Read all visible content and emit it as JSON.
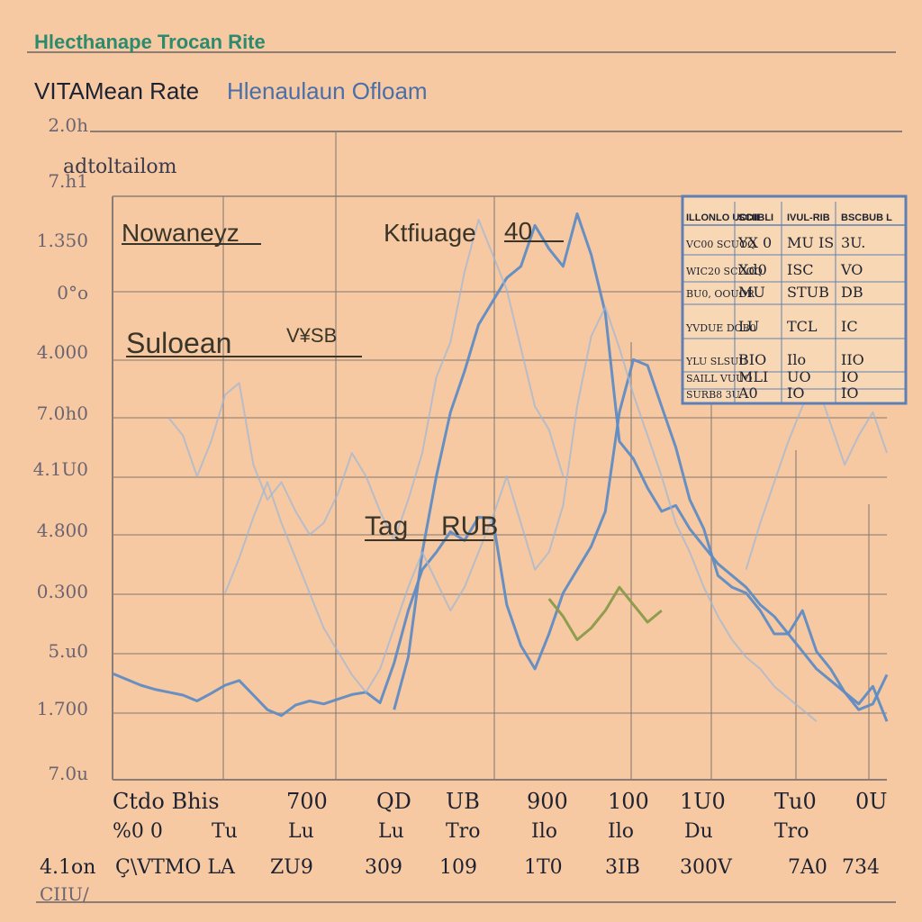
{
  "header": {
    "top_title": "Hlecthanape Trocan Rite",
    "main_title_bold": "VITAMean Rate",
    "main_title_light": "Hlenaulaun Ofloam"
  },
  "annotations": {
    "top_left": "adtoltailom",
    "upper_label": "Nowaneyz",
    "upper_right_label": "Ktfiuage",
    "upper_right_value": "40",
    "mid_label": "Suloean",
    "mid_label_suffix": "V¥SB",
    "center_label_a": "Tag",
    "center_label_b": "RUB"
  },
  "colors": {
    "background": "#f6c9a3",
    "grid": "#8a7d76",
    "line_primary": "#5f8cc4",
    "line_faint": "#9eb6d6",
    "line_olive": "#8a9a4a",
    "title_green": "#2e8a6c",
    "text_dark": "#1e2230",
    "text_axis": "#6c6470"
  },
  "chart_data": {
    "type": "line",
    "title": "VITAMean Rate Hlenaulaun Ofloam",
    "y_tick_labels": [
      "2.0h",
      "7.h1",
      "1.350",
      "0°o",
      "4.000",
      "7.0h0",
      "4.1U0",
      "4.800",
      "0.300",
      "5.u0",
      "1.700",
      "7.0u"
    ],
    "x_row1_labels": [
      "Ctdo Bhis",
      "700",
      "QD",
      "UB",
      "900",
      "100",
      "1U0",
      "Tu0",
      "0U"
    ],
    "x_row2_labels": [
      "%0 0",
      "Tu",
      "Lu",
      "Lu",
      "Tro",
      "Ilo",
      "Ilo",
      "Du",
      "Tro"
    ],
    "x_row3_labels": [
      "4.1on",
      "Ç\\VTMO LA",
      "ZU9",
      "309",
      "109",
      "1T0",
      "3IB",
      "300V",
      "7A0",
      "734"
    ],
    "x_footer_label": "CIIU/",
    "series": [
      {
        "color": "#5f8cc4",
        "points": [
          [
            0,
            1.82
          ],
          [
            2,
            1.72
          ],
          [
            4,
            1.62
          ],
          [
            6,
            1.55
          ],
          [
            8,
            1.5
          ],
          [
            10,
            1.45
          ],
          [
            12,
            1.35
          ],
          [
            14,
            1.48
          ],
          [
            16,
            1.62
          ],
          [
            18,
            1.7
          ],
          [
            20,
            1.45
          ],
          [
            22,
            1.2
          ],
          [
            24,
            1.1
          ],
          [
            26,
            1.28
          ],
          [
            28,
            1.35
          ],
          [
            30,
            1.3
          ],
          [
            32,
            1.38
          ],
          [
            34,
            1.46
          ],
          [
            36,
            1.5
          ],
          [
            38,
            1.32
          ],
          [
            40,
            2.0
          ],
          [
            42,
            2.9
          ],
          [
            44,
            3.6
          ],
          [
            46,
            3.9
          ],
          [
            48,
            4.25
          ],
          [
            50,
            4.1
          ],
          [
            52,
            4.5
          ],
          [
            54,
            4.48
          ],
          [
            56,
            3.0
          ],
          [
            58,
            2.3
          ],
          [
            60,
            1.9
          ],
          [
            62,
            2.5
          ],
          [
            64,
            3.2
          ],
          [
            66,
            3.6
          ],
          [
            68,
            4.0
          ],
          [
            70,
            4.6
          ],
          [
            72,
            6.3
          ],
          [
            74,
            7.2
          ],
          [
            76,
            7.1
          ],
          [
            78,
            6.4
          ],
          [
            80,
            5.7
          ],
          [
            82,
            4.8
          ],
          [
            84,
            4.3
          ],
          [
            86,
            3.5
          ],
          [
            88,
            3.3
          ],
          [
            90,
            3.2
          ],
          [
            92,
            2.9
          ],
          [
            94,
            2.5
          ],
          [
            96,
            2.5
          ],
          [
            98,
            2.9
          ],
          [
            100,
            2.2
          ],
          [
            102,
            1.9
          ],
          [
            104,
            1.5
          ],
          [
            106,
            1.2
          ],
          [
            108,
            1.3
          ],
          [
            110,
            1.8
          ]
        ]
      },
      {
        "color": "#5f8cc4",
        "points": [
          [
            40,
            1.2
          ],
          [
            42,
            2.1
          ],
          [
            44,
            3.9
          ],
          [
            46,
            5.2
          ],
          [
            48,
            6.3
          ],
          [
            50,
            7.0
          ],
          [
            52,
            7.8
          ],
          [
            54,
            8.2
          ],
          [
            56,
            8.6
          ],
          [
            58,
            8.8
          ],
          [
            60,
            9.5
          ],
          [
            62,
            9.1
          ],
          [
            64,
            8.8
          ],
          [
            66,
            9.7
          ],
          [
            68,
            9.0
          ],
          [
            70,
            8.0
          ],
          [
            72,
            5.8
          ],
          [
            74,
            5.5
          ],
          [
            76,
            5.0
          ],
          [
            78,
            4.6
          ],
          [
            80,
            4.7
          ],
          [
            82,
            4.3
          ],
          [
            84,
            4.0
          ],
          [
            86,
            3.7
          ],
          [
            88,
            3.5
          ],
          [
            90,
            3.3
          ],
          [
            92,
            3.0
          ],
          [
            94,
            2.8
          ],
          [
            96,
            2.5
          ],
          [
            98,
            2.2
          ],
          [
            100,
            1.9
          ],
          [
            102,
            1.7
          ],
          [
            104,
            1.5
          ],
          [
            106,
            1.3
          ],
          [
            108,
            1.6
          ],
          [
            110,
            1.0
          ]
        ]
      },
      {
        "color": "#8a9a4a",
        "points": [
          [
            62,
            3.1
          ],
          [
            64,
            2.8
          ],
          [
            66,
            2.4
          ],
          [
            68,
            2.6
          ],
          [
            70,
            2.9
          ],
          [
            72,
            3.3
          ],
          [
            74,
            3.0
          ],
          [
            76,
            2.7
          ],
          [
            78,
            2.9
          ]
        ]
      },
      {
        "color": "#9eb6d6",
        "points": [
          [
            8,
            6.2
          ],
          [
            10,
            5.9
          ],
          [
            12,
            5.2
          ],
          [
            14,
            5.8
          ],
          [
            16,
            6.6
          ],
          [
            18,
            6.8
          ],
          [
            20,
            5.4
          ],
          [
            22,
            4.8
          ],
          [
            24,
            5.1
          ],
          [
            26,
            4.6
          ],
          [
            28,
            4.2
          ],
          [
            30,
            4.4
          ],
          [
            32,
            4.9
          ],
          [
            34,
            5.6
          ],
          [
            36,
            5.2
          ],
          [
            38,
            4.6
          ],
          [
            40,
            4.1
          ],
          [
            42,
            4.8
          ],
          [
            44,
            5.6
          ],
          [
            46,
            6.9
          ],
          [
            48,
            7.5
          ],
          [
            50,
            8.7
          ],
          [
            52,
            9.6
          ],
          [
            54,
            9.0
          ],
          [
            56,
            8.4
          ],
          [
            58,
            7.4
          ],
          [
            60,
            6.4
          ],
          [
            62,
            6.0
          ],
          [
            64,
            5.2
          ]
        ]
      },
      {
        "color": "#9eb6d6",
        "points": [
          [
            16,
            3.2
          ],
          [
            18,
            3.8
          ],
          [
            20,
            4.5
          ],
          [
            22,
            5.1
          ],
          [
            24,
            4.4
          ],
          [
            26,
            3.8
          ],
          [
            28,
            3.2
          ],
          [
            30,
            2.6
          ],
          [
            32,
            2.2
          ],
          [
            34,
            1.8
          ],
          [
            36,
            1.5
          ],
          [
            38,
            1.9
          ],
          [
            40,
            2.6
          ],
          [
            42,
            3.3
          ],
          [
            44,
            3.9
          ],
          [
            46,
            3.4
          ],
          [
            48,
            2.9
          ],
          [
            50,
            3.3
          ],
          [
            52,
            3.9
          ],
          [
            54,
            4.5
          ],
          [
            56,
            5.2
          ],
          [
            58,
            4.4
          ],
          [
            60,
            3.6
          ],
          [
            62,
            3.9
          ],
          [
            64,
            4.7
          ],
          [
            66,
            6.4
          ],
          [
            68,
            7.6
          ],
          [
            70,
            8.1
          ],
          [
            72,
            7.4
          ],
          [
            74,
            6.6
          ],
          [
            76,
            5.9
          ],
          [
            78,
            5.2
          ],
          [
            80,
            4.4
          ],
          [
            82,
            3.9
          ],
          [
            84,
            3.3
          ],
          [
            86,
            2.8
          ],
          [
            88,
            2.4
          ],
          [
            90,
            2.1
          ],
          [
            92,
            1.9
          ],
          [
            94,
            1.6
          ],
          [
            96,
            1.4
          ],
          [
            98,
            1.2
          ],
          [
            100,
            1.0
          ]
        ]
      },
      {
        "color": "#9eb6d6",
        "points": [
          [
            90,
            3.6
          ],
          [
            92,
            4.4
          ],
          [
            94,
            5.1
          ],
          [
            96,
            5.8
          ],
          [
            98,
            6.4
          ],
          [
            100,
            6.8
          ],
          [
            102,
            6.1
          ],
          [
            104,
            5.4
          ],
          [
            106,
            5.9
          ],
          [
            108,
            6.3
          ],
          [
            110,
            5.6
          ]
        ]
      }
    ],
    "legend_table": {
      "headers": [
        "ILLONLO UCDII",
        "SCIIBLI",
        "IVUL-RIB",
        "BSCBUB L"
      ],
      "rows": [
        [
          "VC00 SCUOQ",
          "YX 0",
          "MU IS",
          "3U."
        ],
        [
          "WIC20 SCUOQ",
          "Xd0",
          "ISC",
          "VO"
        ],
        [
          "BU0, OOUOR",
          "MU",
          "STUB",
          "DB"
        ],
        [
          "YVDUE DOB0",
          "LU",
          "TCL",
          "IC"
        ],
        [
          "YLU SLSUU",
          "BIO",
          "Ilo",
          "IIO"
        ],
        [
          "SAILL VUUO",
          "MLI",
          "UO",
          "IO"
        ],
        [
          "SURB8 3U",
          "A0",
          "IO",
          "IO"
        ]
      ]
    },
    "grid": true,
    "legend_position": "top-right"
  }
}
